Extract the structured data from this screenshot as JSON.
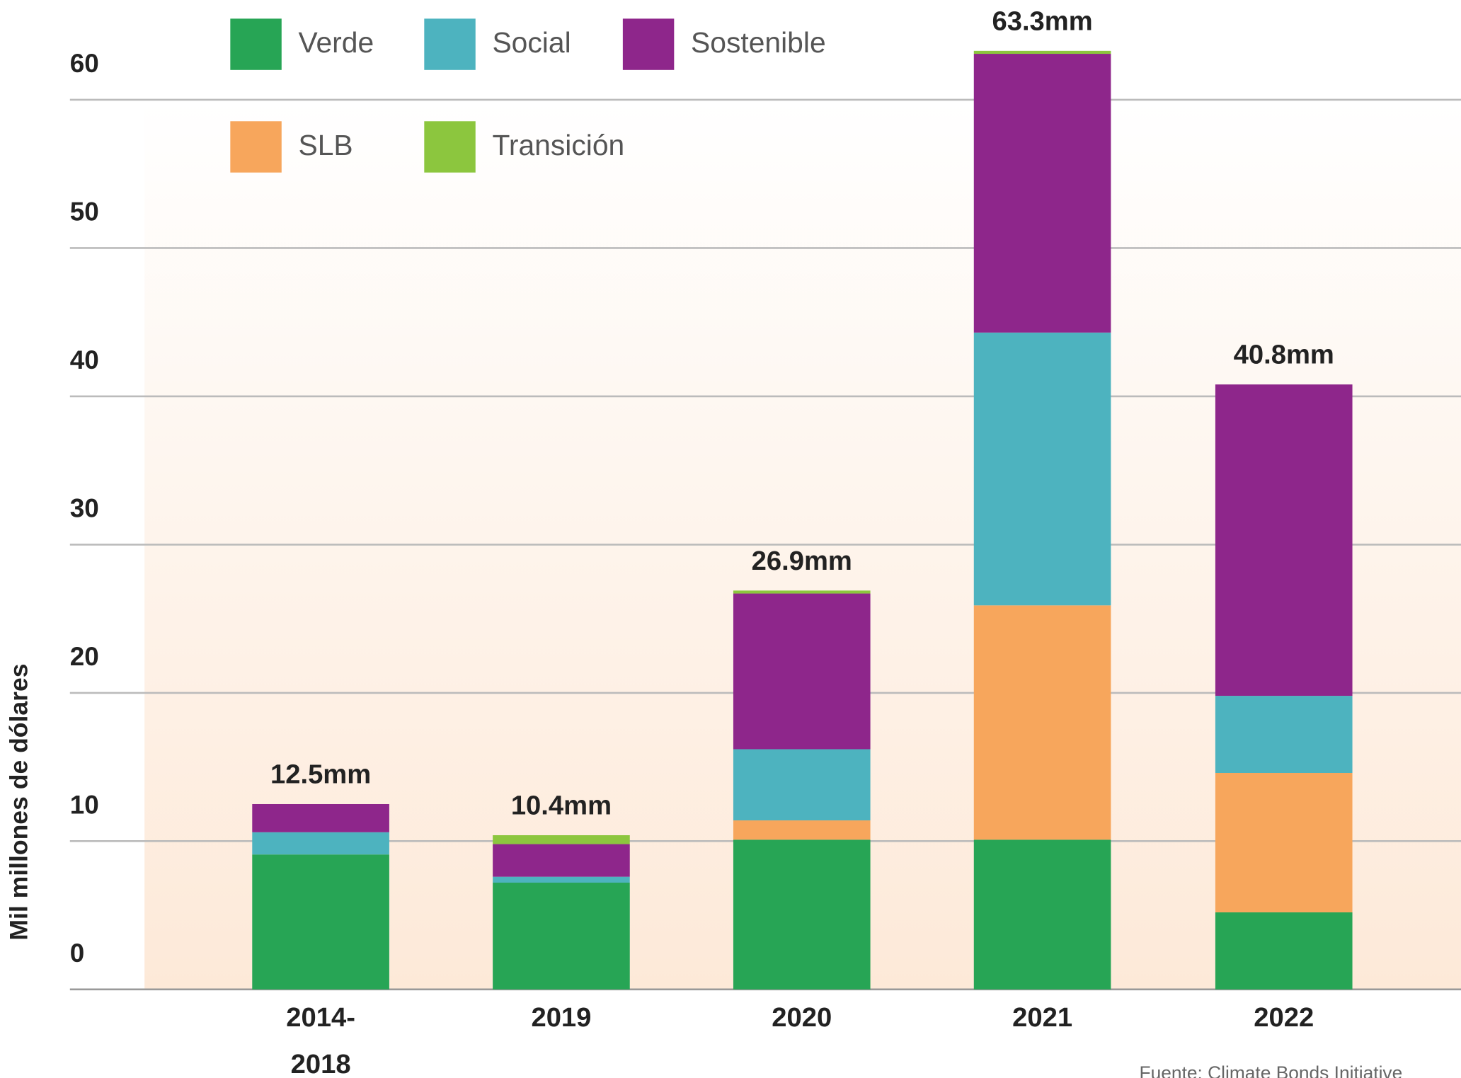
{
  "chart_data": {
    "type": "stacked_bar",
    "y_axis_label": "Mil millones de dólares",
    "source": "Fuente: Climate Bonds Initiative",
    "categories": [
      "2014-2018",
      "2019",
      "2020",
      "2021",
      "2022"
    ],
    "series": [
      {
        "name": "Verde",
        "color": "#27a555",
        "values": [
          9.1,
          7.2,
          10.1,
          10.1,
          5.2
        ]
      },
      {
        "name": "SLB",
        "color": "#f7a65c",
        "values": [
          0,
          0,
          1.3,
          15.8,
          9.4
        ]
      },
      {
        "name": "Social",
        "color": "#4db3bf",
        "values": [
          1.5,
          0.4,
          4.8,
          18.4,
          5.2
        ]
      },
      {
        "name": "Sostenible",
        "color": "#8e268b",
        "values": [
          1.9,
          2.2,
          10.5,
          18.8,
          21.0
        ]
      },
      {
        "name": "Transición",
        "color": "#8cc63e",
        "values": [
          0,
          0.6,
          0.2,
          0.2,
          0
        ]
      }
    ],
    "totals": [
      12.5,
      10.4,
      26.9,
      63.3,
      40.8
    ],
    "total_labels": [
      "12.5mm",
      "10.4mm",
      "26.9mm",
      "63.3mm",
      "40.8mm"
    ],
    "ylim": [
      0,
      63.3
    ],
    "yticks": [
      0,
      10,
      20,
      30,
      40,
      50,
      60
    ],
    "grid": true,
    "legend_order": [
      "Verde",
      "Social",
      "Sostenible",
      "SLB",
      "Transición"
    ]
  }
}
